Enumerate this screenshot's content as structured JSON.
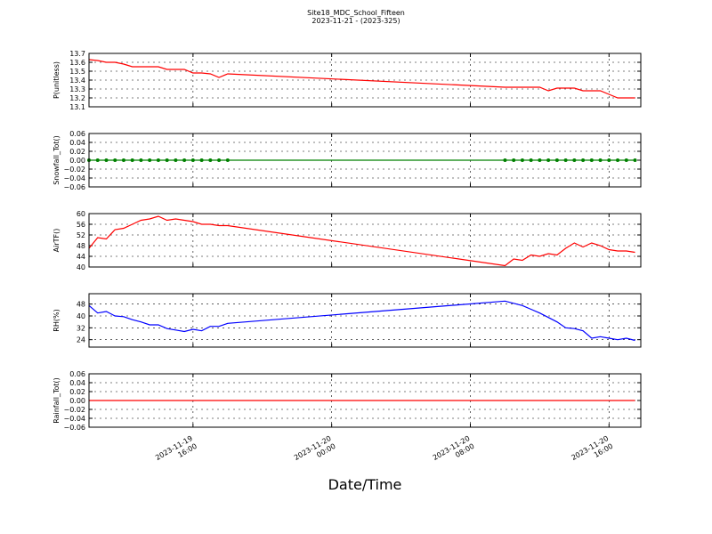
{
  "chart_data": {
    "type": "line",
    "title": "Site18_MDC_School_Fifteen",
    "subtitle": "2023-11-21 - (2023-325)",
    "xlabel": "Date/Time",
    "grid": true,
    "xlim": [
      "2023-11-19 10:00",
      "2023-11-20 17:50"
    ],
    "xticks": [
      "2023-11-19 16:00",
      "2023-11-20 00:00",
      "2023-11-20 08:00",
      "2023-11-20 16:00"
    ],
    "x": [
      "2023-11-19 10:00",
      "2023-11-19 10:30",
      "2023-11-19 11:00",
      "2023-11-19 11:30",
      "2023-11-19 12:00",
      "2023-11-19 12:30",
      "2023-11-19 13:00",
      "2023-11-19 13:30",
      "2023-11-19 14:00",
      "2023-11-19 14:30",
      "2023-11-19 15:00",
      "2023-11-19 15:30",
      "2023-11-19 16:00",
      "2023-11-19 16:30",
      "2023-11-19 17:00",
      "2023-11-19 17:30",
      "2023-11-19 18:00",
      "2023-11-20 10:00",
      "2023-11-20 10:30",
      "2023-11-20 11:00",
      "2023-11-20 11:30",
      "2023-11-20 12:00",
      "2023-11-20 12:30",
      "2023-11-20 13:00",
      "2023-11-20 13:30",
      "2023-11-20 14:00",
      "2023-11-20 14:30",
      "2023-11-20 15:00",
      "2023-11-20 15:30",
      "2023-11-20 16:00",
      "2023-11-20 16:30",
      "2023-11-20 17:00",
      "2023-11-20 17:30"
    ],
    "panels": [
      {
        "ylabel": "P(unitless)",
        "ylim": [
          13.1,
          13.7
        ],
        "yticks": [
          13.1,
          13.2,
          13.3,
          13.4,
          13.5,
          13.6,
          13.7
        ],
        "series": [
          {
            "color": "#ff0000",
            "values": [
              13.63,
              13.62,
              13.6,
              13.6,
              13.58,
              13.55,
              13.55,
              13.55,
              13.55,
              13.52,
              13.52,
              13.52,
              13.48,
              13.48,
              13.47,
              13.43,
              13.47,
              13.32,
              13.32,
              13.32,
              13.32,
              13.32,
              13.28,
              13.31,
              13.31,
              13.31,
              13.28,
              13.28,
              13.28,
              13.24,
              13.2,
              13.2,
              13.2
            ]
          }
        ]
      },
      {
        "ylabel": "Snowfall_Tot()",
        "ylim": [
          -0.06,
          0.06
        ],
        "yticks": [
          {
            "value": -0.06,
            "label": "−0.06"
          },
          {
            "value": -0.04,
            "label": "−0.04"
          },
          {
            "value": -0.02,
            "label": "−0.02"
          },
          {
            "value": 0,
            "label": "0.00"
          },
          {
            "value": 0.02,
            "label": "0.02"
          },
          {
            "value": 0.04,
            "label": "0.04"
          },
          {
            "value": 0.06,
            "label": "0.06"
          }
        ],
        "series": [
          {
            "color": "#008000",
            "marker": "o",
            "values": [
              0,
              0,
              0,
              0,
              0,
              0,
              0,
              0,
              0,
              0,
              0,
              0,
              0,
              0,
              0,
              0,
              0,
              0,
              0,
              0,
              0,
              0,
              0,
              0,
              0,
              0,
              0,
              0,
              0,
              0,
              0,
              0,
              0
            ]
          }
        ]
      },
      {
        "ylabel": "AirTF()",
        "ylim": [
          40,
          60
        ],
        "yticks": [
          40,
          44,
          48,
          52,
          56,
          60
        ],
        "series": [
          {
            "color": "#ff0000",
            "values": [
              47,
              51,
              50.5,
              54,
              54.5,
              56,
              57.5,
              58,
              59,
              57.5,
              58,
              57.5,
              57,
              56,
              56,
              55.5,
              55.5,
              40.5,
              43,
              42.5,
              44.5,
              44,
              45,
              44.5,
              47,
              49,
              47.5,
              49,
              48,
              46.5,
              46,
              46,
              45.5
            ]
          }
        ]
      },
      {
        "ylabel": "RH(%)",
        "ylim": [
          19,
          55
        ],
        "yticks": [
          24,
          32,
          40,
          48
        ],
        "series": [
          {
            "color": "#0000ff",
            "values": [
              47,
              42,
              43,
              40,
              39.5,
              37.5,
              36,
              34,
              34,
              31.5,
              30.5,
              29.5,
              31,
              30,
              33,
              33,
              35,
              50,
              48.5,
              47,
              44.5,
              42,
              39,
              36,
              32,
              31.5,
              30,
              25,
              26,
              25,
              24,
              25,
              23.5
            ]
          }
        ]
      },
      {
        "ylabel": "Rainfall_Tot()",
        "ylim": [
          -0.06,
          0.06
        ],
        "yticks": [
          {
            "value": -0.06,
            "label": "−0.06"
          },
          {
            "value": -0.04,
            "label": "−0.04"
          },
          {
            "value": -0.02,
            "label": "−0.02"
          },
          {
            "value": 0,
            "label": "0.00"
          },
          {
            "value": 0.02,
            "label": "0.02"
          },
          {
            "value": 0.04,
            "label": "0.04"
          },
          {
            "value": 0.06,
            "label": "0.06"
          }
        ],
        "series": [
          {
            "color": "#ff0000",
            "values": [
              0,
              0,
              0,
              0,
              0,
              0,
              0,
              0,
              0,
              0,
              0,
              0,
              0,
              0,
              0,
              0,
              0,
              0,
              0,
              0,
              0,
              0,
              0,
              0,
              0,
              0,
              0,
              0,
              0,
              0,
              0,
              0,
              0
            ]
          }
        ]
      }
    ]
  }
}
